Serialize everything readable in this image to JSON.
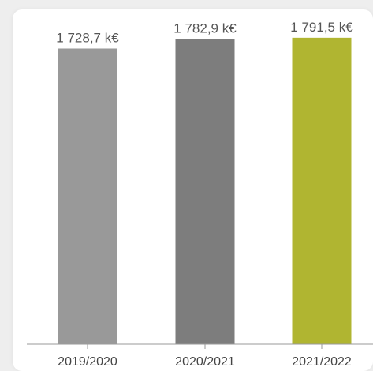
{
  "chart_data": {
    "type": "bar",
    "categories": [
      "2019/2020",
      "2020/2021",
      "2021/2022"
    ],
    "values": [
      1728.7,
      1782.9,
      1791.5
    ],
    "value_labels": [
      "1 728,7 k€",
      "1 782,9 k€",
      "1 791,5 k€"
    ],
    "bar_colors": [
      "#999999",
      "#7d7d7d",
      "#b0b531"
    ],
    "axis_color": "#9a9a9a",
    "title": "",
    "xlabel": "",
    "ylabel": "",
    "ylim": [
      0,
      1800
    ],
    "grid": false
  }
}
